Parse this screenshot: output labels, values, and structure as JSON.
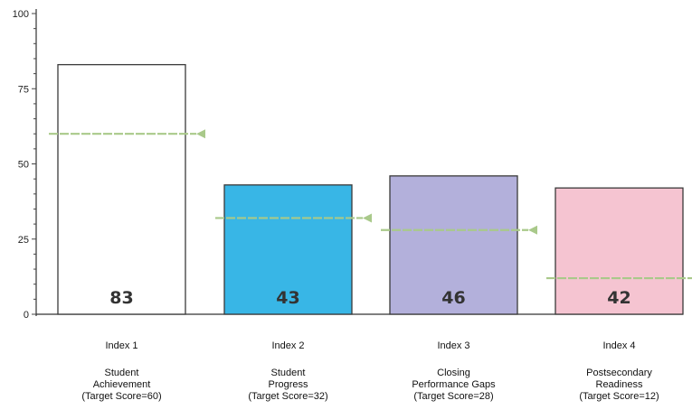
{
  "chart_data": {
    "type": "bar",
    "categories": [
      "Index 1",
      "Index 2",
      "Index 3",
      "Index 4"
    ],
    "category_sublabels": [
      [
        "Student",
        "Achievement",
        "(Target Score=60)"
      ],
      [
        "Student",
        "Progress",
        "(Target Score=32)"
      ],
      [
        "Closing",
        "Performance Gaps",
        "(Target Score=28)"
      ],
      [
        "Postsecondary",
        "Readiness",
        "(Target Score=12)"
      ]
    ],
    "values": [
      83,
      43,
      46,
      42
    ],
    "targets": [
      60,
      32,
      28,
      12
    ],
    "bar_colors": [
      "#ffffff",
      "#38b6e6",
      "#b3b0db",
      "#f5c4d1"
    ],
    "target_line_color": "#a9c98a",
    "ylim": [
      0,
      100
    ],
    "yticks": [
      0,
      25,
      50,
      75,
      100
    ],
    "title": "",
    "xlabel": "",
    "ylabel": ""
  }
}
